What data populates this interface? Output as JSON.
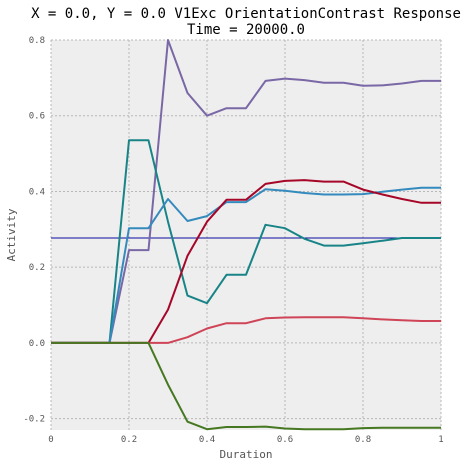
{
  "chart_data": {
    "type": "line",
    "title": "X = 0.0, Y = 0.0 V1Exc OrientationContrast Response",
    "subtitle": "Time = 20000.0",
    "xlabel": "Duration",
    "ylabel": "Activity",
    "xlim": [
      0,
      1
    ],
    "ylim": [
      -0.23,
      0.8
    ],
    "grid": true,
    "background": "#eeeeee",
    "xticks": [
      {
        "value": 0,
        "label": "0"
      },
      {
        "value": 0.2,
        "label": "0.2"
      },
      {
        "value": 0.4,
        "label": "0.4"
      },
      {
        "value": 0.6,
        "label": "0.6"
      },
      {
        "value": 0.8,
        "label": "0.8"
      },
      {
        "value": 1,
        "label": "1"
      }
    ],
    "yticks": [
      {
        "value": -0.2,
        "label": "-0.2"
      },
      {
        "value": 0.0,
        "label": "0.0"
      },
      {
        "value": 0.2,
        "label": "0.2"
      },
      {
        "value": 0.4,
        "label": "0.4"
      },
      {
        "value": 0.6,
        "label": "0.6"
      },
      {
        "value": 0.8,
        "label": "0.8"
      }
    ],
    "hline": {
      "y": 0.277,
      "color": "#0a0aa0"
    },
    "x": [
      0,
      0.05,
      0.1,
      0.15,
      0.2,
      0.25,
      0.3,
      0.35,
      0.4,
      0.45,
      0.5,
      0.55,
      0.6,
      0.65,
      0.7,
      0.75,
      0.8,
      0.85,
      0.9,
      0.95,
      1.0
    ],
    "series": [
      {
        "color": "#7a68a6",
        "values": [
          0,
          0,
          0,
          0,
          0.245,
          0.245,
          0.8,
          0.66,
          0.6,
          0.62,
          0.62,
          0.692,
          0.698,
          0.694,
          0.687,
          0.687,
          0.679,
          0.68,
          0.685,
          0.692,
          0.692
        ]
      },
      {
        "color": "#188487",
        "values": [
          0,
          0,
          0,
          0,
          0.535,
          0.535,
          0.32,
          0.125,
          0.105,
          0.18,
          0.18,
          0.312,
          0.303,
          0.275,
          0.257,
          0.257,
          0.263,
          0.27,
          0.277,
          0.277,
          0.277
        ]
      },
      {
        "color": "#348abd",
        "values": [
          0,
          0,
          0,
          0,
          0.303,
          0.303,
          0.38,
          0.322,
          0.335,
          0.372,
          0.372,
          0.406,
          0.402,
          0.396,
          0.392,
          0.392,
          0.393,
          0.399,
          0.405,
          0.41,
          0.41
        ]
      },
      {
        "color": "#a60628",
        "values": [
          0,
          0,
          0,
          0,
          0,
          0,
          0.088,
          0.23,
          0.32,
          0.378,
          0.378,
          0.42,
          0.428,
          0.43,
          0.426,
          0.426,
          0.405,
          0.392,
          0.38,
          0.37,
          0.37
        ]
      },
      {
        "color": "#cf4457",
        "values": [
          0,
          0,
          0,
          0,
          0,
          0,
          0,
          0.015,
          0.038,
          0.052,
          0.052,
          0.065,
          0.067,
          0.068,
          0.068,
          0.068,
          0.065,
          0.062,
          0.06,
          0.058,
          0.058
        ]
      },
      {
        "color": "#467821",
        "values": [
          0,
          0,
          0,
          0,
          0,
          0,
          -0.11,
          -0.208,
          -0.228,
          -0.222,
          -0.222,
          -0.221,
          -0.226,
          -0.228,
          -0.228,
          -0.228,
          -0.225,
          -0.224,
          -0.224,
          -0.224,
          -0.224
        ]
      }
    ]
  }
}
